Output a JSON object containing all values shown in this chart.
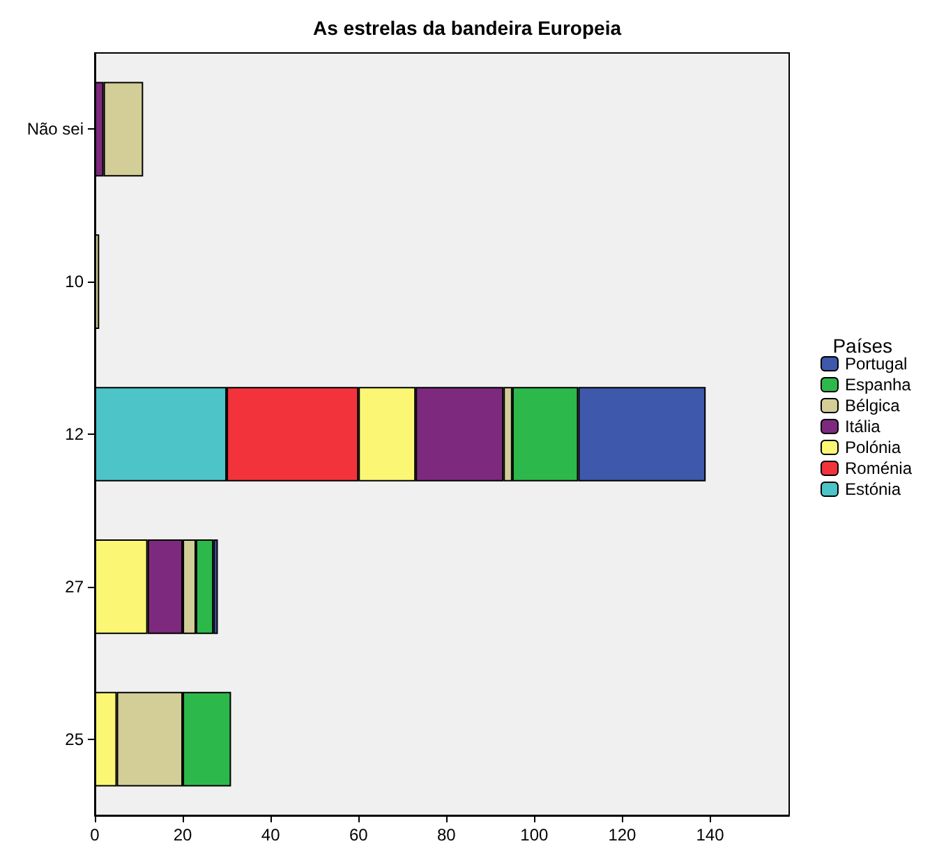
{
  "chart_data": {
    "type": "bar",
    "orientation": "horizontal",
    "stacked": true,
    "title": "As estrelas da bandeira Europeia",
    "legend_title": "Países",
    "legend": "right",
    "grid": false,
    "categories": [
      "Não sei",
      "10",
      "12",
      "27",
      "25"
    ],
    "xlim": [
      0,
      158
    ],
    "xticks": [
      0,
      20,
      40,
      60,
      80,
      100,
      120,
      140
    ],
    "series": [
      {
        "name": "Estónia",
        "color": "#4cc4c8",
        "values": [
          null,
          null,
          30,
          null,
          null
        ]
      },
      {
        "name": "Roménia",
        "color": "#f2333c",
        "values": [
          null,
          null,
          30,
          null,
          null
        ]
      },
      {
        "name": "Polónia",
        "color": "#fbf775",
        "values": [
          null,
          null,
          13,
          12,
          5
        ]
      },
      {
        "name": "Itália",
        "color": "#7d2a7e",
        "values": [
          2,
          null,
          20,
          8,
          null
        ]
      },
      {
        "name": "Bélgica",
        "color": "#d3ce97",
        "values": [
          9,
          1,
          2,
          3,
          15
        ]
      },
      {
        "name": "Espanha",
        "color": "#2db84b",
        "values": [
          null,
          null,
          15,
          4,
          11
        ]
      },
      {
        "name": "Portugal",
        "color": "#3e59ab",
        "values": [
          null,
          null,
          29,
          1,
          null
        ]
      }
    ]
  }
}
